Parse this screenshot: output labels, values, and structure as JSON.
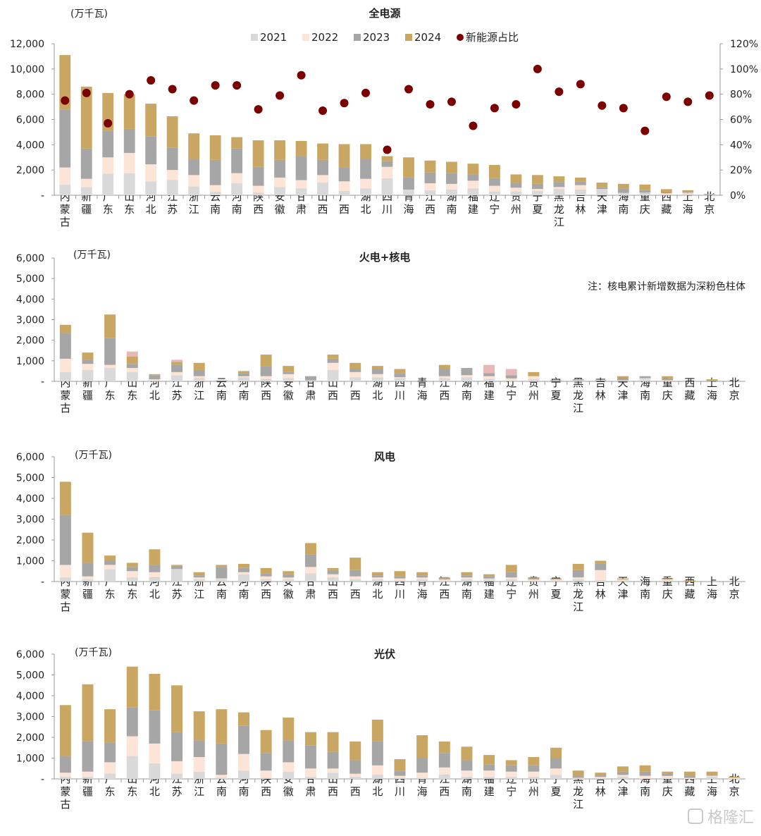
{
  "colors": {
    "y2021": "#d9d9d9",
    "y2022": "#fce4d6",
    "y2023": "#a6a6a6",
    "y2024": "#c9a762",
    "nuclear": "#e6b8b7",
    "share": "#7b0000"
  },
  "provinces": [
    "内蒙古",
    "新疆",
    "广东",
    "山东",
    "河北",
    "江苏",
    "浙江",
    "云南",
    "河南",
    "陕西",
    "安徽",
    "甘肃",
    "山西",
    "广西",
    "湖北",
    "四川",
    "青海",
    "江西",
    "湖南",
    "福建",
    "辽宁",
    "贵州",
    "宁夏",
    "黑龙江",
    "吉林",
    "天津",
    "海南",
    "重庆",
    "西藏",
    "上海",
    "北京"
  ],
  "legend": [
    {
      "label": "2021",
      "color": "#d9d9d9",
      "kind": "bar"
    },
    {
      "label": "2022",
      "color": "#fce4d6",
      "kind": "bar"
    },
    {
      "label": "2023",
      "color": "#a6a6a6",
      "kind": "bar"
    },
    {
      "label": "2024",
      "color": "#c9a762",
      "kind": "bar"
    },
    {
      "label": "新能源占比",
      "color": "#7b0000",
      "kind": "dot"
    }
  ],
  "chart_data": [
    {
      "type": "bar",
      "stacked": true,
      "title": "全电源",
      "unit": "(万千瓦)",
      "ylim": [
        0,
        12000
      ],
      "yticks": [
        "-",
        "2,000",
        "4,000",
        "6,000",
        "8,000",
        "10,000",
        "12,000"
      ],
      "y2lim": [
        0,
        120
      ],
      "y2ticks": [
        "0%",
        "20%",
        "40%",
        "60%",
        "80%",
        "100%",
        "120%"
      ],
      "series": [
        {
          "name": "2021",
          "values": [
            850,
            650,
            1700,
            1750,
            1100,
            1200,
            700,
            250,
            950,
            200,
            650,
            550,
            1000,
            350,
            550,
            1350,
            450,
            400,
            450,
            550,
            300,
            300,
            350,
            500,
            450,
            500,
            200,
            150,
            80,
            150,
            30
          ]
        },
        {
          "name": "2022",
          "values": [
            1350,
            650,
            1300,
            1600,
            1350,
            800,
            900,
            550,
            800,
            550,
            750,
            650,
            600,
            750,
            750,
            900,
            0,
            550,
            450,
            600,
            450,
            300,
            150,
            150,
            350,
            0,
            0,
            50,
            80,
            50,
            10
          ]
        },
        {
          "name": "2023",
          "values": [
            4600,
            2400,
            2100,
            1900,
            2200,
            1750,
            1300,
            2000,
            1950,
            1500,
            1400,
            1900,
            1200,
            1100,
            1600,
            450,
            950,
            850,
            850,
            500,
            600,
            400,
            400,
            400,
            300,
            150,
            350,
            200,
            50,
            50,
            20
          ]
        },
        {
          "name": "2024",
          "values": [
            4300,
            4900,
            3000,
            2750,
            2600,
            2500,
            2000,
            1950,
            900,
            2100,
            1550,
            1200,
            1300,
            1850,
            1150,
            400,
            1600,
            950,
            900,
            850,
            1050,
            650,
            700,
            450,
            300,
            350,
            350,
            450,
            270,
            150,
            40
          ]
        },
        {
          "name": "新能源占比",
          "values": [
            75,
            81,
            57,
            80,
            91,
            84,
            75,
            87,
            87,
            68,
            79,
            95,
            67,
            73,
            81,
            36,
            84,
            72,
            74,
            55,
            69,
            72,
            100,
            82,
            88,
            71,
            69,
            51,
            78,
            74,
            79
          ]
        }
      ]
    },
    {
      "type": "bar",
      "stacked": true,
      "title": "火电+核电",
      "unit": "(万千瓦)",
      "note": "注：核电累计新增数据为深粉色柱体",
      "ylim": [
        0,
        6000
      ],
      "yticks": [
        "-",
        "1,000",
        "2,000",
        "3,000",
        "4,000",
        "5,000",
        "6,000"
      ],
      "series": [
        {
          "name": "2021",
          "values": [
            450,
            550,
            650,
            450,
            50,
            300,
            150,
            0,
            200,
            100,
            150,
            50,
            550,
            200,
            200,
            150,
            0,
            150,
            200,
            100,
            50,
            100,
            0,
            50,
            0,
            50,
            100,
            0,
            0,
            0,
            0
          ]
        },
        {
          "name": "2022",
          "values": [
            650,
            300,
            150,
            200,
            50,
            150,
            100,
            0,
            50,
            150,
            200,
            0,
            350,
            250,
            150,
            50,
            0,
            100,
            100,
            150,
            100,
            150,
            0,
            0,
            0,
            0,
            50,
            50,
            0,
            0,
            0
          ]
        },
        {
          "name": "2023",
          "values": [
            1250,
            200,
            1300,
            200,
            200,
            350,
            300,
            50,
            150,
            500,
            100,
            200,
            200,
            150,
            250,
            200,
            0,
            350,
            350,
            150,
            150,
            0,
            50,
            50,
            50,
            100,
            100,
            100,
            0,
            50,
            0
          ]
        },
        {
          "name": "2024",
          "values": [
            400,
            350,
            1150,
            350,
            50,
            150,
            350,
            0,
            100,
            550,
            300,
            0,
            200,
            300,
            150,
            200,
            0,
            200,
            0,
            0,
            0,
            200,
            0,
            0,
            0,
            100,
            0,
            100,
            0,
            50,
            0
          ]
        },
        {
          "name": "核电",
          "values": [
            0,
            0,
            0,
            250,
            0,
            100,
            0,
            0,
            0,
            0,
            0,
            0,
            0,
            0,
            0,
            0,
            0,
            0,
            0,
            400,
            300,
            0,
            0,
            0,
            0,
            0,
            0,
            0,
            0,
            0,
            0
          ]
        }
      ]
    },
    {
      "type": "bar",
      "stacked": true,
      "title": "风电",
      "unit": "(万千瓦)",
      "ylim": [
        0,
        6000
      ],
      "yticks": [
        "-",
        "1,000",
        "2,000",
        "3,000",
        "4,000",
        "5,000",
        "6,000"
      ],
      "series": [
        {
          "name": "2021",
          "values": [
            200,
            100,
            600,
            200,
            200,
            600,
            100,
            100,
            350,
            100,
            100,
            400,
            200,
            100,
            100,
            50,
            100,
            50,
            100,
            100,
            100,
            50,
            50,
            100,
            50,
            50,
            0,
            50,
            0,
            0,
            0
          ]
        },
        {
          "name": "2022",
          "values": [
            600,
            150,
            200,
            300,
            250,
            0,
            100,
            50,
            100,
            150,
            100,
            300,
            150,
            150,
            100,
            100,
            100,
            50,
            100,
            50,
            100,
            50,
            50,
            100,
            500,
            50,
            0,
            50,
            0,
            0,
            0
          ]
        },
        {
          "name": "2023",
          "values": [
            2400,
            650,
            200,
            200,
            350,
            150,
            100,
            550,
            200,
            150,
            150,
            600,
            200,
            300,
            100,
            100,
            100,
            50,
            100,
            100,
            250,
            50,
            0,
            350,
            300,
            0,
            0,
            0,
            0,
            0,
            0
          ]
        },
        {
          "name": "2024",
          "values": [
            1600,
            1450,
            250,
            200,
            750,
            50,
            150,
            100,
            200,
            250,
            150,
            550,
            100,
            600,
            150,
            250,
            150,
            50,
            150,
            100,
            350,
            50,
            50,
            300,
            150,
            50,
            0,
            50,
            50,
            0,
            0
          ]
        }
      ]
    },
    {
      "type": "bar",
      "stacked": true,
      "title": "光伏",
      "unit": "(万千瓦)",
      "ylim": [
        0,
        6000
      ],
      "yticks": [
        "-",
        "1,000",
        "2,000",
        "3,000",
        "4,000",
        "5,000",
        "6,000"
      ],
      "series": [
        {
          "name": "2021",
          "values": [
            100,
            100,
            250,
            1100,
            750,
            250,
            350,
            50,
            400,
            50,
            350,
            100,
            300,
            100,
            200,
            50,
            50,
            200,
            100,
            100,
            100,
            100,
            200,
            0,
            50,
            100,
            0,
            50,
            0,
            100,
            0
          ]
        },
        {
          "name": "2022",
          "values": [
            200,
            250,
            550,
            950,
            950,
            600,
            700,
            150,
            800,
            350,
            450,
            400,
            200,
            150,
            450,
            100,
            250,
            350,
            300,
            300,
            250,
            250,
            300,
            50,
            50,
            100,
            150,
            100,
            50,
            50,
            50
          ]
        },
        {
          "name": "2023",
          "values": [
            800,
            1450,
            950,
            1400,
            1600,
            1400,
            800,
            1500,
            1350,
            850,
            1050,
            1100,
            800,
            650,
            1150,
            250,
            700,
            700,
            500,
            300,
            300,
            300,
            500,
            100,
            100,
            150,
            200,
            100,
            100,
            50,
            0
          ]
        },
        {
          "name": "2024",
          "values": [
            2450,
            2750,
            1600,
            1950,
            1750,
            2250,
            1400,
            1650,
            650,
            1100,
            1100,
            650,
            950,
            900,
            1050,
            550,
            1100,
            550,
            650,
            450,
            250,
            400,
            500,
            250,
            100,
            250,
            300,
            100,
            200,
            150,
            50
          ]
        }
      ]
    }
  ],
  "watermark": {
    "text": "格隆汇"
  }
}
